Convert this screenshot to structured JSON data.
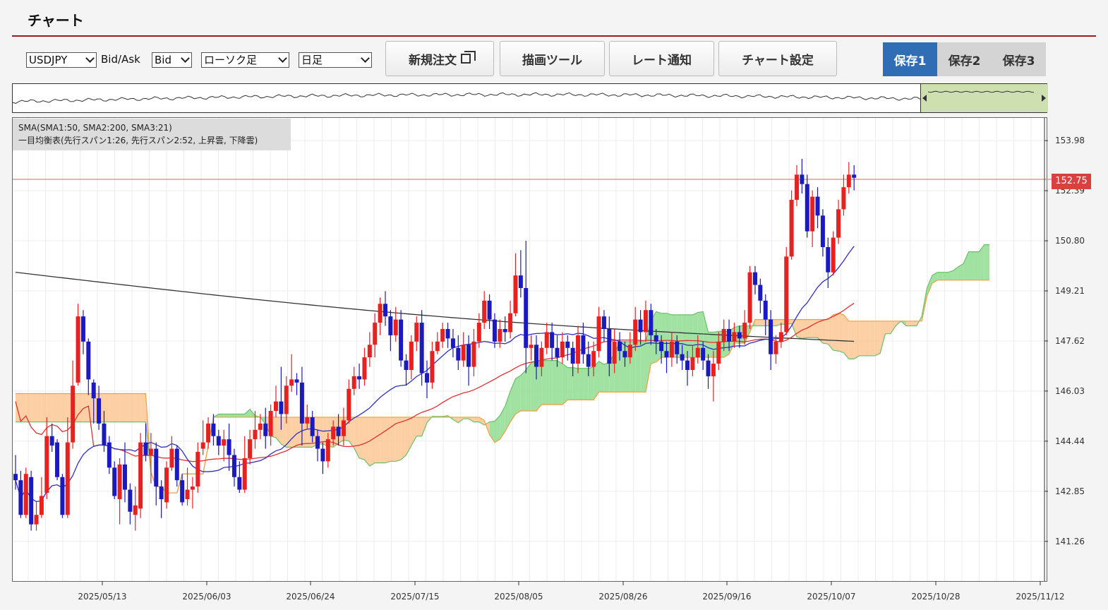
{
  "title": "チャート",
  "toolbar": {
    "symbol": "USDJPY",
    "bidask_label": "Bid/Ask",
    "bidask": "Bid",
    "chart_style": "ローソク足",
    "period": "日足",
    "new_order": "新規注文",
    "draw_tool": "描画ツール",
    "rate_alert": "レート通知",
    "chart_settings": "チャート設定",
    "save1": "保存1",
    "save2": "保存2",
    "save3": "保存3"
  },
  "legend": {
    "line1": "SMA(SMA1:50, SMA2:200, SMA3:21)",
    "line2": "一目均衡表(先行スパン1:26, 先行スパン2:52, 上昇雲, 下降雲)"
  },
  "last_price": "152.75",
  "colors": {
    "up": "#e82020",
    "down": "#1a1ac0",
    "sma50": "#e03030",
    "sma200": "#333333",
    "sma21": "#3030c0",
    "cloud_up": "#90dc90",
    "cloud_down": "#fcc894",
    "accent": "#2f6db5",
    "title_rule": "#a01818"
  },
  "chart_data": {
    "type": "candlestick",
    "y_ticks": [
      "153.98",
      "152.39",
      "150.80",
      "149.21",
      "147.62",
      "146.03",
      "144.44",
      "142.85",
      "141.26"
    ],
    "ylim": [
      140.0,
      154.7
    ],
    "x_ticks": [
      "2025/05/13",
      "2025/06/03",
      "2025/06/24",
      "2025/07/15",
      "2025/08/05",
      "2025/08/26",
      "2025/09/16",
      "2025/10/07",
      "2025/10/28",
      "2025/11/12"
    ],
    "candles": [
      [
        143.4,
        143.2,
        144.0,
        142.9
      ],
      [
        143.2,
        142.1,
        143.5,
        142.0
      ],
      [
        142.1,
        143.4,
        143.6,
        142.0
      ],
      [
        143.3,
        141.8,
        143.5,
        141.6
      ],
      [
        141.8,
        142.1,
        142.5,
        141.6
      ],
      [
        142.1,
        142.7,
        143.3,
        142.0
      ],
      [
        142.8,
        144.6,
        145.2,
        142.6
      ],
      [
        144.6,
        144.3,
        145.0,
        144.1
      ],
      [
        144.4,
        143.3,
        144.5,
        143.2
      ],
      [
        143.3,
        142.1,
        143.4,
        142.0
      ],
      [
        142.1,
        144.4,
        145.2,
        142.0
      ],
      [
        144.4,
        146.2,
        147.0,
        144.2
      ],
      [
        146.3,
        148.4,
        148.8,
        146.2
      ],
      [
        148.4,
        147.6,
        148.6,
        147.2
      ],
      [
        147.6,
        146.4,
        147.7,
        145.9
      ],
      [
        146.3,
        145.8,
        146.4,
        145.0
      ],
      [
        145.8,
        145.0,
        146.2,
        144.8
      ],
      [
        145.0,
        144.3,
        145.4,
        144.1
      ],
      [
        144.4,
        143.6,
        144.6,
        143.4
      ],
      [
        143.6,
        142.7,
        143.8,
        142.6
      ],
      [
        142.6,
        143.7,
        143.9,
        141.8
      ],
      [
        143.7,
        142.9,
        144.4,
        142.5
      ],
      [
        142.9,
        142.2,
        143.1,
        141.8
      ],
      [
        142.1,
        142.4,
        143.0,
        141.6
      ],
      [
        142.3,
        144.4,
        144.7,
        142.0
      ],
      [
        144.4,
        144.0,
        145.0,
        143.8
      ],
      [
        144.0,
        144.2,
        144.7,
        143.1
      ],
      [
        144.2,
        143.0,
        144.4,
        142.4
      ],
      [
        143.0,
        142.6,
        143.2,
        142.0
      ],
      [
        142.5,
        143.6,
        143.8,
        142.3
      ],
      [
        143.6,
        144.2,
        144.6,
        143.5
      ],
      [
        144.2,
        143.2,
        144.3,
        143.0
      ],
      [
        143.2,
        142.5,
        143.4,
        142.4
      ],
      [
        142.6,
        142.9,
        143.6,
        142.4
      ],
      [
        142.9,
        143.0,
        143.3,
        142.3
      ],
      [
        143.0,
        144.1,
        144.4,
        142.8
      ],
      [
        144.2,
        144.4,
        145.1,
        144.0
      ],
      [
        144.4,
        145.0,
        145.2,
        144.2
      ],
      [
        145.0,
        144.6,
        145.3,
        144.3
      ],
      [
        144.6,
        144.3,
        144.8,
        144.0
      ],
      [
        144.3,
        144.5,
        144.8,
        143.8
      ],
      [
        144.5,
        144.0,
        145.0,
        143.5
      ],
      [
        144.0,
        143.3,
        144.2,
        143.0
      ],
      [
        143.3,
        142.9,
        143.8,
        142.8
      ],
      [
        142.9,
        143.9,
        144.6,
        142.8
      ],
      [
        143.9,
        144.5,
        144.8,
        143.7
      ],
      [
        144.5,
        144.8,
        145.4,
        144.2
      ],
      [
        144.8,
        145.0,
        145.3,
        144.5
      ],
      [
        145.0,
        144.6,
        145.5,
        144.2
      ],
      [
        144.6,
        145.4,
        145.6,
        144.3
      ],
      [
        145.4,
        145.7,
        146.2,
        145.2
      ],
      [
        145.7,
        145.3,
        146.8,
        144.8
      ],
      [
        145.3,
        146.2,
        146.5,
        145.0
      ],
      [
        146.2,
        146.4,
        147.2,
        146.0
      ],
      [
        146.4,
        146.3,
        146.6,
        145.9
      ],
      [
        146.3,
        145.0,
        146.8,
        144.3
      ],
      [
        145.0,
        145.2,
        145.6,
        144.8
      ],
      [
        145.2,
        144.6,
        145.4,
        144.4
      ],
      [
        144.6,
        144.2,
        144.8,
        143.8
      ],
      [
        144.2,
        143.8,
        144.4,
        143.4
      ],
      [
        143.8,
        144.5,
        144.7,
        143.6
      ],
      [
        144.5,
        144.9,
        145.1,
        144.3
      ],
      [
        144.9,
        144.6,
        145.3,
        144.3
      ],
      [
        144.6,
        145.1,
        145.5,
        144.3
      ],
      [
        145.1,
        146.1,
        146.4,
        145.0
      ],
      [
        146.1,
        146.5,
        146.8,
        145.9
      ],
      [
        146.5,
        146.4,
        146.9,
        146.1
      ],
      [
        146.4,
        147.1,
        147.4,
        146.2
      ],
      [
        147.1,
        147.5,
        147.9,
        146.8
      ],
      [
        147.5,
        148.2,
        148.5,
        147.1
      ],
      [
        148.2,
        148.8,
        149.0,
        147.8
      ],
      [
        148.8,
        148.4,
        149.2,
        148.1
      ],
      [
        148.4,
        147.8,
        148.6,
        147.3
      ],
      [
        147.8,
        148.3,
        148.7,
        147.6
      ],
      [
        148.3,
        147.0,
        148.6,
        146.8
      ],
      [
        147.0,
        146.7,
        147.2,
        146.2
      ],
      [
        146.7,
        147.6,
        147.8,
        146.4
      ],
      [
        147.6,
        148.2,
        148.4,
        147.3
      ],
      [
        148.2,
        146.6,
        148.6,
        146.2
      ],
      [
        146.6,
        146.3,
        147.0,
        145.8
      ],
      [
        146.3,
        147.3,
        147.6,
        146.1
      ],
      [
        147.3,
        147.6,
        147.9,
        147.2
      ],
      [
        147.6,
        148.0,
        148.2,
        147.4
      ],
      [
        148.0,
        147.7,
        148.2,
        147.4
      ],
      [
        147.7,
        147.4,
        148.0,
        147.1
      ],
      [
        147.4,
        147.0,
        147.8,
        146.7
      ],
      [
        147.0,
        147.5,
        147.9,
        146.8
      ],
      [
        147.5,
        146.8,
        147.8,
        146.2
      ],
      [
        146.8,
        147.6,
        148.0,
        146.5
      ],
      [
        147.6,
        148.2,
        148.5,
        147.4
      ],
      [
        148.2,
        148.9,
        149.2,
        148.0
      ],
      [
        148.9,
        148.3,
        149.1,
        148.0
      ],
      [
        148.3,
        147.6,
        148.5,
        147.4
      ],
      [
        147.6,
        148.0,
        148.3,
        147.4
      ],
      [
        148.0,
        147.9,
        148.4,
        147.6
      ],
      [
        147.9,
        148.5,
        148.9,
        147.7
      ],
      [
        148.5,
        149.7,
        150.4,
        148.4
      ],
      [
        149.7,
        149.3,
        150.5,
        149.0
      ],
      [
        149.3,
        147.4,
        150.8,
        146.6
      ],
      [
        147.4,
        147.5,
        147.8,
        147.0
      ],
      [
        147.5,
        146.8,
        147.8,
        146.4
      ],
      [
        146.8,
        147.4,
        147.6,
        146.5
      ],
      [
        147.4,
        147.9,
        148.2,
        147.2
      ],
      [
        147.9,
        147.4,
        148.2,
        147.0
      ],
      [
        147.4,
        147.1,
        147.8,
        146.8
      ],
      [
        147.1,
        147.6,
        147.9,
        146.9
      ],
      [
        147.6,
        147.4,
        147.8,
        147.0
      ],
      [
        147.4,
        146.9,
        147.6,
        146.5
      ],
      [
        146.9,
        147.8,
        148.1,
        146.6
      ],
      [
        147.8,
        147.2,
        148.2,
        146.9
      ],
      [
        147.2,
        146.8,
        147.6,
        146.5
      ],
      [
        146.8,
        147.3,
        147.6,
        146.5
      ],
      [
        147.3,
        148.4,
        148.7,
        147.1
      ],
      [
        148.4,
        148.0,
        148.6,
        147.6
      ],
      [
        148.0,
        146.9,
        148.4,
        146.5
      ],
      [
        146.9,
        147.6,
        148.0,
        146.6
      ],
      [
        147.6,
        147.3,
        147.9,
        147.0
      ],
      [
        147.3,
        147.1,
        147.6,
        146.8
      ],
      [
        147.1,
        147.5,
        147.9,
        146.9
      ],
      [
        147.5,
        148.3,
        148.7,
        147.3
      ],
      [
        148.3,
        147.9,
        148.6,
        147.5
      ],
      [
        147.9,
        148.6,
        148.9,
        147.6
      ],
      [
        148.6,
        147.8,
        148.8,
        147.5
      ],
      [
        147.8,
        147.6,
        148.0,
        147.2
      ],
      [
        147.6,
        147.3,
        147.8,
        146.9
      ],
      [
        147.3,
        147.1,
        147.6,
        146.6
      ],
      [
        147.1,
        147.6,
        147.9,
        146.8
      ],
      [
        147.6,
        147.2,
        147.8,
        146.9
      ],
      [
        147.2,
        147.0,
        147.5,
        146.7
      ],
      [
        147.0,
        146.7,
        147.3,
        146.2
      ],
      [
        146.7,
        147.1,
        147.5,
        146.5
      ],
      [
        147.1,
        147.4,
        147.8,
        146.9
      ],
      [
        147.4,
        147.0,
        147.6,
        146.7
      ],
      [
        147.0,
        146.5,
        147.2,
        146.1
      ],
      [
        146.5,
        146.9,
        147.3,
        145.7
      ],
      [
        146.9,
        147.6,
        147.9,
        146.7
      ],
      [
        147.6,
        148.0,
        148.3,
        147.3
      ],
      [
        148.0,
        147.6,
        148.3,
        147.3
      ],
      [
        147.6,
        147.9,
        148.2,
        147.4
      ],
      [
        147.9,
        147.7,
        148.1,
        147.4
      ],
      [
        147.7,
        148.2,
        148.6,
        147.5
      ],
      [
        148.2,
        149.8,
        150.0,
        148.0
      ],
      [
        149.8,
        149.4,
        150.0,
        149.1
      ],
      [
        149.4,
        148.9,
        149.6,
        148.5
      ],
      [
        148.9,
        148.3,
        149.1,
        147.8
      ],
      [
        148.3,
        147.2,
        148.6,
        146.7
      ],
      [
        147.2,
        147.6,
        147.8,
        146.9
      ],
      [
        147.6,
        147.9,
        148.2,
        147.4
      ],
      [
        147.9,
        150.3,
        150.6,
        147.8
      ],
      [
        150.3,
        152.1,
        152.4,
        150.2
      ],
      [
        152.1,
        152.9,
        153.2,
        151.9
      ],
      [
        152.9,
        152.6,
        153.4,
        152.3
      ],
      [
        152.6,
        151.1,
        152.9,
        150.9
      ],
      [
        151.1,
        152.2,
        152.4,
        150.6
      ],
      [
        152.2,
        151.6,
        152.5,
        151.2
      ],
      [
        151.6,
        150.6,
        151.8,
        150.3
      ],
      [
        150.6,
        149.8,
        150.9,
        149.3
      ],
      [
        149.8,
        150.9,
        151.1,
        149.7
      ],
      [
        150.9,
        151.8,
        152.1,
        150.7
      ],
      [
        151.8,
        152.5,
        152.9,
        151.6
      ],
      [
        152.5,
        152.9,
        153.3,
        152.3
      ],
      [
        152.9,
        152.8,
        153.2,
        152.4
      ]
    ],
    "x_start_index": 0,
    "sma21_visible": true,
    "sma50_visible": true,
    "sma200_visible": true,
    "ichimoku_cloud_visible": true,
    "last_price_line": 152.75,
    "grid": true
  }
}
